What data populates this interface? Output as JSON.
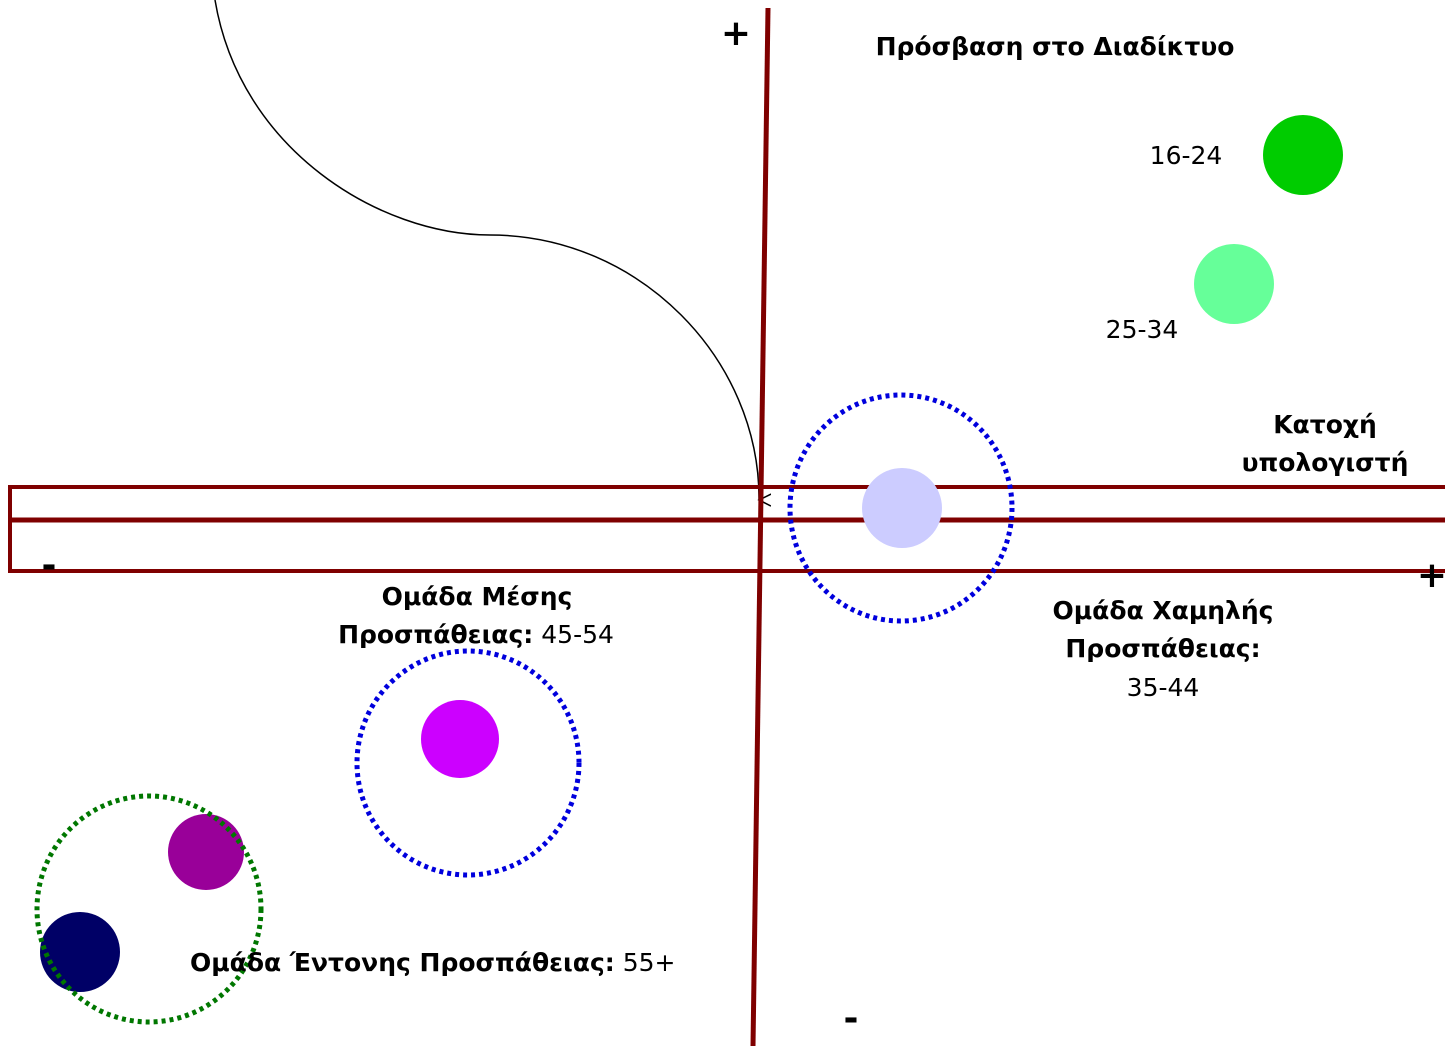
{
  "axes": {
    "vertical_plus": "+",
    "vertical_minus": "-",
    "vertical_label": "Πρόσβαση στο Διαδίκτυο",
    "horizontal_plus": "+",
    "horizontal_minus": "-",
    "horizontal_label": [
      "Κατοχή",
      "υπολογιστή"
    ]
  },
  "points": [
    {
      "label": "16-24"
    },
    {
      "label": "25-34"
    }
  ],
  "groups": [
    {
      "title": [
        "Ομάδα Χαμηλής",
        "Προσπάθειας:"
      ],
      "ages": "35-44"
    },
    {
      "title": [
        "Ομάδα Μέσης",
        "Προσπάθειας:"
      ],
      "ages": "45-54"
    },
    {
      "title": [
        "Ομάδα Έντονης Προσπάθειας:"
      ],
      "ages": "55+"
    }
  ]
}
